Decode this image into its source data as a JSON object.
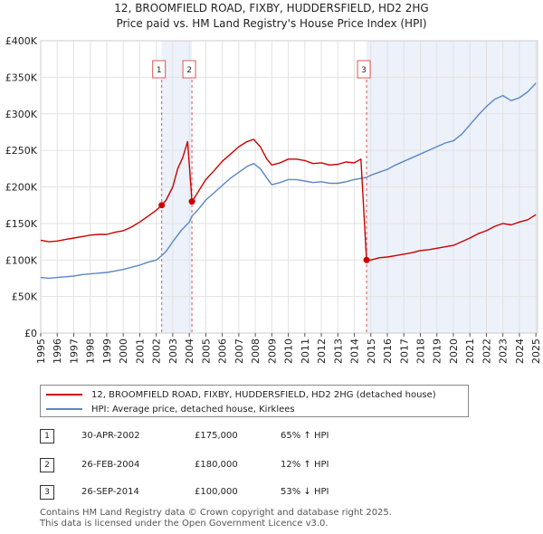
{
  "chart_data": {
    "type": "line",
    "title": "12, BROOMFIELD ROAD, FIXBY, HUDDERSFIELD, HD2 2HG",
    "subtitle": "Price paid vs. HM Land Registry's House Price Index (HPI)",
    "xlim": [
      1995,
      2025.1
    ],
    "ylim": [
      0,
      400000
    ],
    "x_ticks": [
      "1995",
      "1996",
      "1997",
      "1998",
      "1999",
      "2000",
      "2001",
      "2002",
      "2003",
      "2004",
      "2005",
      "2006",
      "2007",
      "2008",
      "2009",
      "2010",
      "2011",
      "2012",
      "2013",
      "2014",
      "2015",
      "2016",
      "2017",
      "2018",
      "2019",
      "2020",
      "2021",
      "2022",
      "2023",
      "2024",
      "2025"
    ],
    "y_ticks": [
      {
        "value": 0,
        "label": "£0"
      },
      {
        "value": 50000,
        "label": "£50K"
      },
      {
        "value": 100000,
        "label": "£100K"
      },
      {
        "value": 150000,
        "label": "£150K"
      },
      {
        "value": 200000,
        "label": "£200K"
      },
      {
        "value": 250000,
        "label": "£250K"
      },
      {
        "value": 300000,
        "label": "£300K"
      },
      {
        "value": 350000,
        "label": "£350K"
      },
      {
        "value": 400000,
        "label": "£400K"
      }
    ],
    "grid": true,
    "shaded_periods": [
      [
        2002.33,
        2004.16
      ],
      [
        2014.74,
        2025.1
      ]
    ],
    "series": [
      {
        "name": "12, BROOMFIELD ROAD, FIXBY, HUDDERSFIELD, HD2 2HG (detached house)",
        "color": "#cc0000",
        "points": [
          [
            1995,
            127000
          ],
          [
            1995.5,
            125000
          ],
          [
            1996,
            126000
          ],
          [
            1996.5,
            128000
          ],
          [
            1997,
            130000
          ],
          [
            1997.5,
            132000
          ],
          [
            1998,
            134000
          ],
          [
            1998.5,
            135000
          ],
          [
            1999,
            135000
          ],
          [
            1999.5,
            138000
          ],
          [
            2000,
            140000
          ],
          [
            2000.5,
            145000
          ],
          [
            2001,
            152000
          ],
          [
            2001.5,
            160000
          ],
          [
            2002,
            168000
          ],
          [
            2002.33,
            175000
          ],
          [
            2002.6,
            182000
          ],
          [
            2003,
            200000
          ],
          [
            2003.3,
            225000
          ],
          [
            2003.6,
            240000
          ],
          [
            2003.9,
            262000
          ],
          [
            2004.1,
            200000
          ],
          [
            2004.16,
            180000
          ],
          [
            2004.5,
            192000
          ],
          [
            2005,
            210000
          ],
          [
            2005.5,
            222000
          ],
          [
            2006,
            235000
          ],
          [
            2006.5,
            245000
          ],
          [
            2007,
            255000
          ],
          [
            2007.5,
            262000
          ],
          [
            2007.9,
            265000
          ],
          [
            2008.3,
            255000
          ],
          [
            2008.7,
            238000
          ],
          [
            2009,
            230000
          ],
          [
            2009.5,
            233000
          ],
          [
            2010,
            238000
          ],
          [
            2010.5,
            238000
          ],
          [
            2011,
            236000
          ],
          [
            2011.5,
            232000
          ],
          [
            2012,
            233000
          ],
          [
            2012.5,
            230000
          ],
          [
            2013,
            231000
          ],
          [
            2013.5,
            234000
          ],
          [
            2014,
            233000
          ],
          [
            2014.4,
            238000
          ],
          [
            2014.74,
            100000
          ],
          [
            2015,
            100000
          ],
          [
            2015.5,
            103000
          ],
          [
            2016,
            104000
          ],
          [
            2016.5,
            106000
          ],
          [
            2017,
            108000
          ],
          [
            2017.5,
            110000
          ],
          [
            2018,
            113000
          ],
          [
            2018.5,
            114000
          ],
          [
            2019,
            116000
          ],
          [
            2019.5,
            118000
          ],
          [
            2020,
            120000
          ],
          [
            2020.5,
            125000
          ],
          [
            2021,
            130000
          ],
          [
            2021.5,
            136000
          ],
          [
            2022,
            140000
          ],
          [
            2022.5,
            146000
          ],
          [
            2023,
            150000
          ],
          [
            2023.5,
            148000
          ],
          [
            2024,
            152000
          ],
          [
            2024.5,
            155000
          ],
          [
            2025,
            162000
          ]
        ]
      },
      {
        "name": "HPI: Average price, detached house, Kirklees",
        "color": "#5a87c5",
        "points": [
          [
            1995,
            76000
          ],
          [
            1995.5,
            75000
          ],
          [
            1996,
            76000
          ],
          [
            1996.5,
            77000
          ],
          [
            1997,
            78000
          ],
          [
            1997.5,
            80000
          ],
          [
            1998,
            81000
          ],
          [
            1998.5,
            82000
          ],
          [
            1999,
            83000
          ],
          [
            1999.5,
            85000
          ],
          [
            2000,
            87000
          ],
          [
            2000.5,
            90000
          ],
          [
            2001,
            93000
          ],
          [
            2001.5,
            97000
          ],
          [
            2002,
            100000
          ],
          [
            2002.33,
            106000
          ],
          [
            2002.6,
            112000
          ],
          [
            2003,
            125000
          ],
          [
            2003.5,
            140000
          ],
          [
            2004,
            152000
          ],
          [
            2004.16,
            160000
          ],
          [
            2004.5,
            168000
          ],
          [
            2005,
            182000
          ],
          [
            2005.5,
            192000
          ],
          [
            2006,
            202000
          ],
          [
            2006.5,
            212000
          ],
          [
            2007,
            220000
          ],
          [
            2007.5,
            228000
          ],
          [
            2007.9,
            232000
          ],
          [
            2008.3,
            225000
          ],
          [
            2008.7,
            212000
          ],
          [
            2009,
            203000
          ],
          [
            2009.5,
            206000
          ],
          [
            2010,
            210000
          ],
          [
            2010.5,
            210000
          ],
          [
            2011,
            208000
          ],
          [
            2011.5,
            206000
          ],
          [
            2012,
            207000
          ],
          [
            2012.5,
            205000
          ],
          [
            2013,
            205000
          ],
          [
            2013.5,
            207000
          ],
          [
            2014,
            210000
          ],
          [
            2014.74,
            213000
          ],
          [
            2015,
            216000
          ],
          [
            2015.5,
            220000
          ],
          [
            2016,
            224000
          ],
          [
            2016.5,
            230000
          ],
          [
            2017,
            235000
          ],
          [
            2017.5,
            240000
          ],
          [
            2018,
            245000
          ],
          [
            2018.5,
            250000
          ],
          [
            2019,
            255000
          ],
          [
            2019.5,
            260000
          ],
          [
            2020,
            263000
          ],
          [
            2020.5,
            272000
          ],
          [
            2021,
            285000
          ],
          [
            2021.5,
            298000
          ],
          [
            2022,
            310000
          ],
          [
            2022.5,
            320000
          ],
          [
            2023,
            325000
          ],
          [
            2023.5,
            318000
          ],
          [
            2024,
            322000
          ],
          [
            2024.5,
            330000
          ],
          [
            2025,
            342000
          ]
        ]
      }
    ],
    "sales": [
      {
        "num": "1",
        "x": 2002.33,
        "price": 175000,
        "date": "30-APR-2002",
        "price_label": "£175,000",
        "hpi": "65% ↑ HPI"
      },
      {
        "num": "2",
        "x": 2004.16,
        "price": 180000,
        "date": "26-FEB-2004",
        "price_label": "£180,000",
        "hpi": "12% ↑ HPI"
      },
      {
        "num": "3",
        "x": 2014.74,
        "price": 100000,
        "date": "26-SEP-2014",
        "price_label": "£100,000",
        "hpi": "53% ↓ HPI"
      }
    ],
    "legend": [
      {
        "label": "12, BROOMFIELD ROAD, FIXBY, HUDDERSFIELD, HD2 2HG (detached house)",
        "color": "#cc0000"
      },
      {
        "label": "HPI: Average price, detached house, Kirklees",
        "color": "#5a87c5"
      }
    ]
  },
  "footer": {
    "line1": "Contains HM Land Registry data © Crown copyright and database right 2025.",
    "line2": "This data is licensed under the Open Government Licence v3.0."
  }
}
